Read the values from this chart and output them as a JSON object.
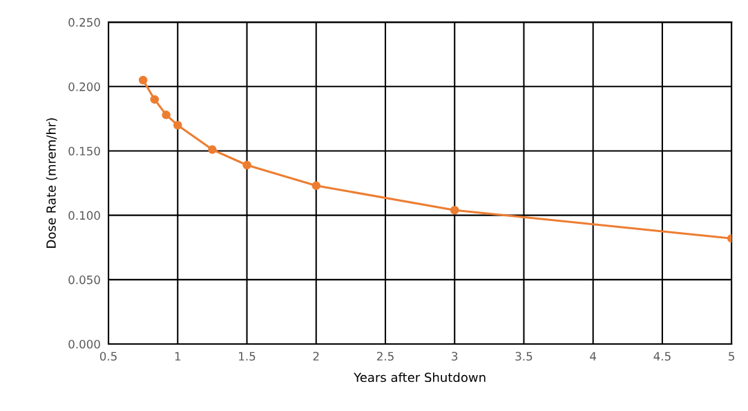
{
  "chart_data": {
    "type": "line",
    "xlabel": "Years after Shutdown",
    "ylabel": "Dose Rate (mrem/hr)",
    "x": [
      0.75,
      0.833,
      0.917,
      1.0,
      1.25,
      1.5,
      2.0,
      3.0,
      5.0
    ],
    "series": [
      {
        "color": "#ed7d31",
        "values": [
          0.205,
          0.19,
          0.178,
          0.17,
          0.151,
          0.139,
          0.123,
          0.104,
          0.082
        ]
      }
    ],
    "xlim": [
      0.5,
      5
    ],
    "xticks": [
      0.5,
      1,
      1.5,
      2,
      2.5,
      3,
      3.5,
      4,
      4.5,
      5
    ],
    "ylim": [
      0,
      0.25
    ],
    "yticks": [
      {
        "value": 0,
        "label": "0.000"
      },
      {
        "value": 0.05,
        "label": "0.050"
      },
      {
        "value": 0.1,
        "label": "0.100"
      },
      {
        "value": 0.15,
        "label": "0.150"
      },
      {
        "value": 0.2,
        "label": "0.200"
      },
      {
        "value": 0.25,
        "label": "0.250"
      }
    ],
    "grid": true,
    "marker": "circle",
    "line_style": "solid",
    "legend": false
  }
}
